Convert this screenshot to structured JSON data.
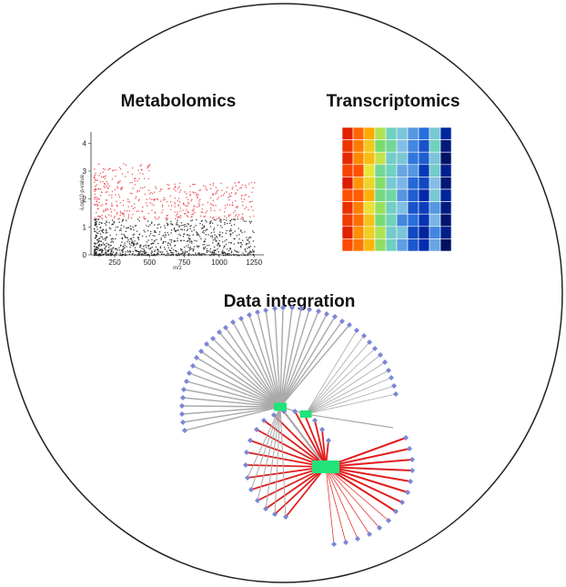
{
  "headings": {
    "metabolomics": "Metabolomics",
    "transcriptomics": "Transcriptomics",
    "integration": "Data integration"
  },
  "scatter": {
    "xlabel": "m/z",
    "ylabel": "-Log10 p-value",
    "x_ticks": [
      "250",
      "500",
      "750",
      "1000",
      "1250"
    ],
    "y_ticks": [
      "0",
      "1",
      "2",
      "3",
      "4"
    ],
    "xlim": [
      80,
      1320
    ],
    "ylim": [
      0,
      4.4
    ],
    "threshold": 1.3
  },
  "colors": {
    "circle": "#222222",
    "significant": "#e8202a",
    "nonsignificant": "#111111",
    "node": "#7b86d4",
    "hub": "#22e37a",
    "edge_gray": "#a9a9a9",
    "edge_red": "#e11d1d"
  },
  "heatmap": {
    "rows": 10,
    "cols": 10,
    "values": [
      [
        0.05,
        0.15,
        0.25,
        0.4,
        0.55,
        0.62,
        0.7,
        0.75,
        0.6,
        0.9
      ],
      [
        0.08,
        0.18,
        0.3,
        0.45,
        0.5,
        0.65,
        0.72,
        0.8,
        0.55,
        0.95
      ],
      [
        0.06,
        0.2,
        0.28,
        0.38,
        0.58,
        0.6,
        0.74,
        0.78,
        0.62,
        0.98
      ],
      [
        0.1,
        0.12,
        0.35,
        0.5,
        0.55,
        0.68,
        0.7,
        0.85,
        0.58,
        0.92
      ],
      [
        0.04,
        0.22,
        0.32,
        0.44,
        0.6,
        0.66,
        0.76,
        0.82,
        0.65,
        0.96
      ],
      [
        0.12,
        0.14,
        0.26,
        0.48,
        0.52,
        0.7,
        0.78,
        0.88,
        0.6,
        0.9
      ],
      [
        0.07,
        0.19,
        0.34,
        0.42,
        0.57,
        0.64,
        0.8,
        0.84,
        0.7,
        0.94
      ],
      [
        0.09,
        0.16,
        0.29,
        0.46,
        0.54,
        0.72,
        0.75,
        0.86,
        0.66,
        0.97
      ],
      [
        0.05,
        0.21,
        0.31,
        0.4,
        0.59,
        0.62,
        0.82,
        0.9,
        0.72,
        0.93
      ],
      [
        0.11,
        0.17,
        0.27,
        0.43,
        0.56,
        0.69,
        0.79,
        0.87,
        0.68,
        0.99
      ]
    ]
  }
}
